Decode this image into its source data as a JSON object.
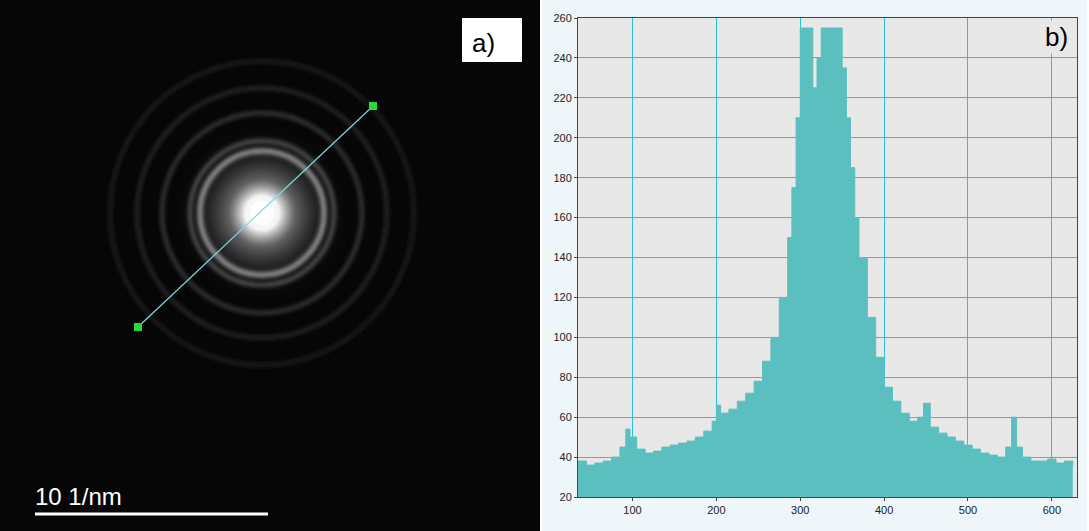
{
  "image_panel": {
    "panel_label": "a)",
    "scale_bar": "10 1/nm"
  },
  "chart_data": {
    "type": "area",
    "panel_label": "b)",
    "color": "#5cbfbf",
    "grid": true,
    "x": [
      35,
      45,
      55,
      65,
      75,
      85,
      92,
      97,
      105,
      115,
      125,
      135,
      145,
      155,
      165,
      175,
      185,
      195,
      200,
      205,
      215,
      225,
      235,
      245,
      255,
      265,
      275,
      285,
      290,
      295,
      300,
      305,
      310,
      315,
      320,
      325,
      330,
      335,
      340,
      345,
      350,
      355,
      360,
      365,
      370,
      380,
      390,
      400,
      410,
      420,
      430,
      440,
      447,
      455,
      465,
      475,
      485,
      495,
      505,
      515,
      525,
      535,
      545,
      552,
      558,
      565,
      575,
      585,
      595,
      605,
      615,
      625
    ],
    "values": [
      38,
      36,
      37,
      38,
      40,
      45,
      54,
      50,
      44,
      42,
      43,
      45,
      46,
      47,
      48,
      50,
      53,
      58,
      66,
      62,
      64,
      68,
      72,
      78,
      88,
      100,
      120,
      150,
      175,
      210,
      255,
      255,
      255,
      225,
      240,
      255,
      255,
      255,
      255,
      255,
      235,
      210,
      185,
      160,
      140,
      110,
      90,
      75,
      68,
      62,
      58,
      60,
      67,
      55,
      52,
      50,
      48,
      46,
      44,
      42,
      41,
      40,
      45,
      60,
      45,
      40,
      38,
      38,
      39,
      37,
      38,
      36
    ],
    "xlim": [
      35,
      630
    ],
    "xticks": [
      100,
      200,
      300,
      400,
      500,
      600
    ],
    "ylim": [
      20,
      260
    ],
    "yticks": [
      20,
      40,
      60,
      80,
      100,
      120,
      140,
      160,
      180,
      200,
      220,
      240,
      260
    ]
  }
}
